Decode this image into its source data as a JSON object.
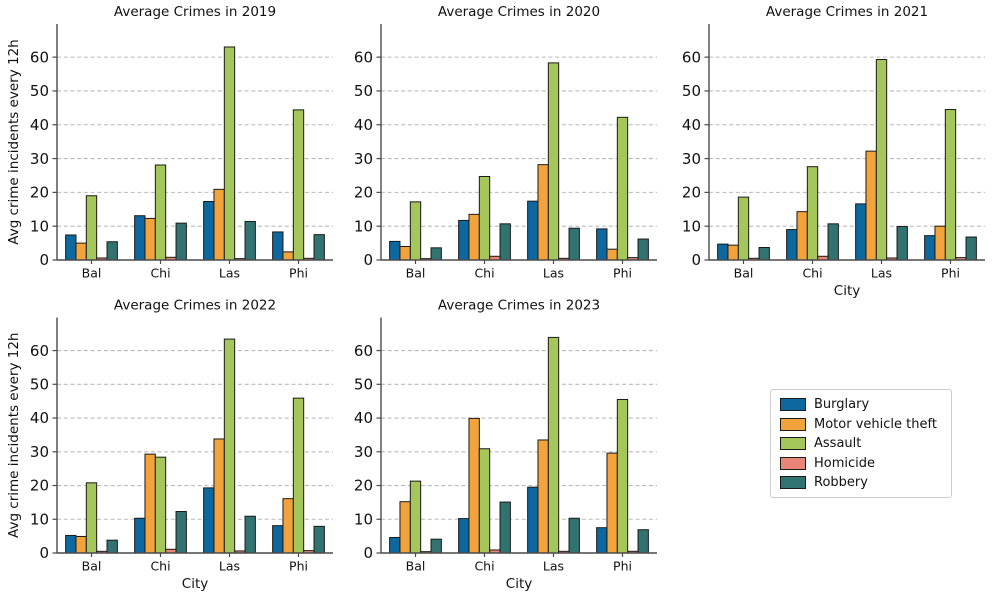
{
  "figure": {
    "background": "#ffffff",
    "grid_color": "#bababa",
    "spine_color": "#4a4a4a",
    "bar_edge_color": "#1a1a1a"
  },
  "legend": {
    "position": "lower-right-cell",
    "items": [
      {
        "label": "Burglary",
        "color": "#0c689e"
      },
      {
        "label": "Motor vehicle theft",
        "color": "#f3a33c"
      },
      {
        "label": "Assault",
        "color": "#a4c65a"
      },
      {
        "label": "Homicide",
        "color": "#e98576"
      },
      {
        "label": "Robbery",
        "color": "#317370"
      }
    ]
  },
  "chart_data": [
    {
      "type": "bar",
      "title": "Average Crimes in 2019",
      "categories": [
        "Bal",
        "Chi",
        "Las",
        "Phi"
      ],
      "series": [
        {
          "name": "Burglary",
          "color": "#0c689e",
          "values": [
            7.4,
            13.1,
            17.3,
            8.3
          ]
        },
        {
          "name": "Motor vehicle theft",
          "color": "#f3a33c",
          "values": [
            5.0,
            12.3,
            20.9,
            2.4
          ]
        },
        {
          "name": "Assault",
          "color": "#a4c65a",
          "values": [
            19.0,
            28.1,
            63.0,
            44.4
          ]
        },
        {
          "name": "Homicide",
          "color": "#e98576",
          "values": [
            0.6,
            0.8,
            0.4,
            0.5
          ]
        },
        {
          "name": "Robbery",
          "color": "#317370",
          "values": [
            5.4,
            10.9,
            11.4,
            7.5
          ]
        }
      ],
      "xlabel": "",
      "ylabel": "Avg crime incidents every 12h",
      "yticks": [
        0,
        10,
        20,
        30,
        40,
        50,
        60
      ],
      "ylim": [
        0,
        69.8
      ],
      "grid": true,
      "grid_style": "dashed"
    },
    {
      "type": "bar",
      "title": "Average Crimes in 2020",
      "categories": [
        "Bal",
        "Chi",
        "Las",
        "Phi"
      ],
      "series": [
        {
          "name": "Burglary",
          "color": "#0c689e",
          "values": [
            5.5,
            11.7,
            17.4,
            9.2
          ]
        },
        {
          "name": "Motor vehicle theft",
          "color": "#f3a33c",
          "values": [
            4.0,
            13.5,
            28.2,
            3.2
          ]
        },
        {
          "name": "Assault",
          "color": "#a4c65a",
          "values": [
            17.2,
            24.7,
            58.3,
            42.2
          ]
        },
        {
          "name": "Homicide",
          "color": "#e98576",
          "values": [
            0.4,
            1.1,
            0.5,
            0.7
          ]
        },
        {
          "name": "Robbery",
          "color": "#317370",
          "values": [
            3.6,
            10.7,
            9.4,
            6.2
          ]
        }
      ],
      "xlabel": "",
      "ylabel": "",
      "yticks": [
        0,
        10,
        20,
        30,
        40,
        50,
        60
      ],
      "ylim": [
        0,
        69.8
      ],
      "grid": true,
      "grid_style": "dashed"
    },
    {
      "type": "bar",
      "title": "Average Crimes in 2021",
      "categories": [
        "Bal",
        "Chi",
        "Las",
        "Phi"
      ],
      "series": [
        {
          "name": "Burglary",
          "color": "#0c689e",
          "values": [
            4.7,
            9.0,
            16.6,
            7.2
          ]
        },
        {
          "name": "Motor vehicle theft",
          "color": "#f3a33c",
          "values": [
            4.4,
            14.3,
            32.2,
            10.0
          ]
        },
        {
          "name": "Assault",
          "color": "#a4c65a",
          "values": [
            18.6,
            27.6,
            59.3,
            44.5
          ]
        },
        {
          "name": "Homicide",
          "color": "#e98576",
          "values": [
            0.5,
            1.1,
            0.6,
            0.7
          ]
        },
        {
          "name": "Robbery",
          "color": "#317370",
          "values": [
            3.7,
            10.7,
            9.9,
            6.8
          ]
        }
      ],
      "xlabel": "City",
      "ylabel": "",
      "yticks": [
        0,
        10,
        20,
        30,
        40,
        50,
        60
      ],
      "ylim": [
        0,
        69.8
      ],
      "grid": true,
      "grid_style": "dashed"
    },
    {
      "type": "bar",
      "title": "Average Crimes in 2022",
      "categories": [
        "Bal",
        "Chi",
        "Las",
        "Phi"
      ],
      "series": [
        {
          "name": "Burglary",
          "color": "#0c689e",
          "values": [
            5.2,
            10.3,
            19.3,
            8.1
          ]
        },
        {
          "name": "Motor vehicle theft",
          "color": "#f3a33c",
          "values": [
            4.9,
            29.3,
            33.8,
            16.1
          ]
        },
        {
          "name": "Assault",
          "color": "#a4c65a",
          "values": [
            20.8,
            28.4,
            63.4,
            45.9
          ]
        },
        {
          "name": "Homicide",
          "color": "#e98576",
          "values": [
            0.5,
            1.1,
            0.6,
            0.7
          ]
        },
        {
          "name": "Robbery",
          "color": "#317370",
          "values": [
            3.8,
            12.3,
            10.9,
            7.9
          ]
        }
      ],
      "xlabel": "City",
      "ylabel": "Avg crime incidents every 12h",
      "yticks": [
        0,
        10,
        20,
        30,
        40,
        50,
        60
      ],
      "ylim": [
        0,
        69.8
      ],
      "grid": true,
      "grid_style": "dashed"
    },
    {
      "type": "bar",
      "title": "Average Crimes in 2023",
      "categories": [
        "Bal",
        "Chi",
        "Las",
        "Phi"
      ],
      "series": [
        {
          "name": "Burglary",
          "color": "#0c689e",
          "values": [
            4.6,
            10.2,
            19.5,
            7.5
          ]
        },
        {
          "name": "Motor vehicle theft",
          "color": "#f3a33c",
          "values": [
            15.2,
            39.9,
            33.5,
            29.6
          ]
        },
        {
          "name": "Assault",
          "color": "#a4c65a",
          "values": [
            21.3,
            30.9,
            63.9,
            45.5
          ]
        },
        {
          "name": "Homicide",
          "color": "#e98576",
          "values": [
            0.4,
            0.9,
            0.5,
            0.5
          ]
        },
        {
          "name": "Robbery",
          "color": "#317370",
          "values": [
            4.1,
            15.1,
            10.3,
            6.9
          ]
        }
      ],
      "xlabel": "City",
      "ylabel": "",
      "yticks": [
        0,
        10,
        20,
        30,
        40,
        50,
        60
      ],
      "ylim": [
        0,
        69.8
      ],
      "grid": true,
      "grid_style": "dashed"
    }
  ]
}
